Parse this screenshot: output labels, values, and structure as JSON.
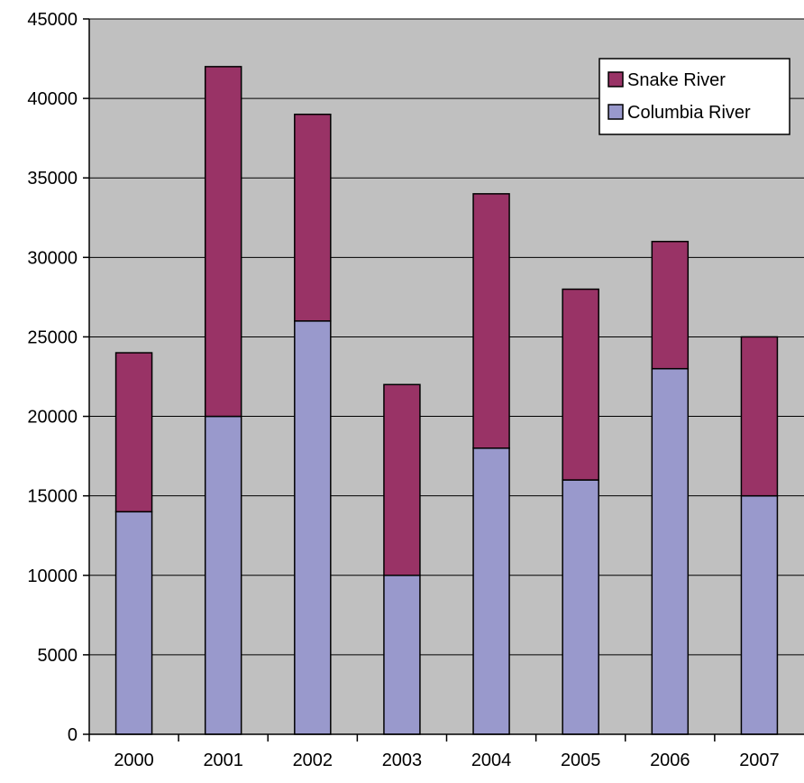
{
  "chart_data": {
    "type": "bar",
    "stacked": true,
    "title": "",
    "xlabel": "",
    "ylabel": "",
    "categories": [
      "2000",
      "2001",
      "2002",
      "2003",
      "2004",
      "2005",
      "2006",
      "2007"
    ],
    "series": [
      {
        "name": "Columbia River",
        "color": "#9999cc",
        "values": [
          14000,
          20000,
          26000,
          10000,
          18000,
          16000,
          23000,
          15000
        ]
      },
      {
        "name": "Snake River",
        "color": "#993366",
        "values": [
          10000,
          22000,
          13000,
          12000,
          16000,
          12000,
          8000,
          10000
        ]
      }
    ],
    "ylim": [
      0,
      45000
    ],
    "yticks": [
      0,
      5000,
      10000,
      15000,
      20000,
      25000,
      30000,
      35000,
      40000,
      45000
    ],
    "ytick_labels": [
      "0",
      "5000",
      "10000",
      "15000",
      "20000",
      "25000",
      "30000",
      "35000",
      "40000",
      "45000"
    ],
    "grid": true,
    "plot_background": "#c0c0c0",
    "legend_position": "top-right",
    "legend_order": [
      "Snake River",
      "Columbia River"
    ]
  }
}
